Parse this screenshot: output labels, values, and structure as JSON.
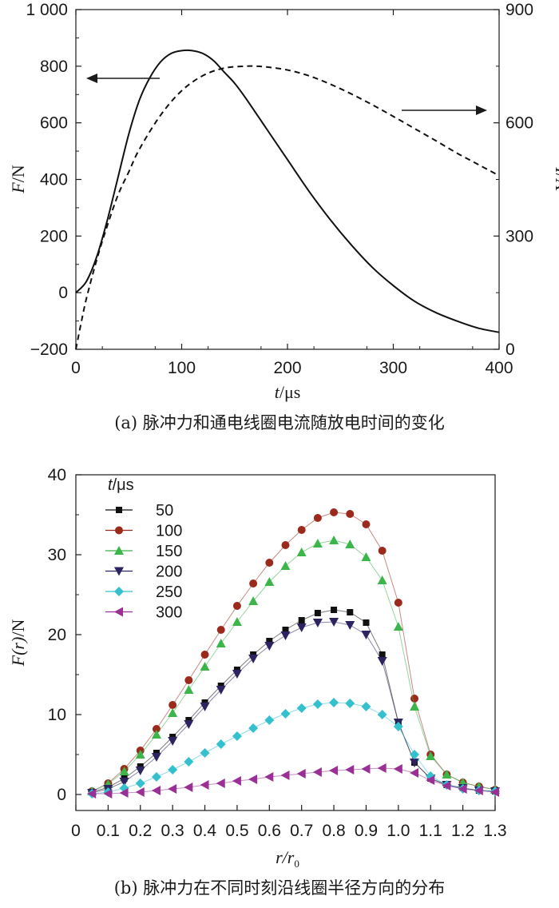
{
  "chart_data": [
    {
      "type": "line",
      "caption": "(a) 脉冲力和通电线圈电流随放电时间的变化",
      "xlabel_var": "t",
      "xlabel_unit": "/μs",
      "ylabel_left_var": "F",
      "ylabel_left_unit": "/N",
      "ylabel_right_var": "I",
      "ylabel_right_unit": "/A",
      "xlim": [
        0,
        400
      ],
      "ylim_left": [
        -200,
        1000
      ],
      "ylim_right": [
        0,
        900
      ],
      "x_ticks": [
        0,
        100,
        200,
        300,
        400
      ],
      "y_left_ticks": [
        -200,
        0,
        200,
        400,
        600,
        800,
        1000
      ],
      "y_left_tick_labels": [
        "−200",
        "0",
        "200",
        "400",
        "600",
        "800",
        "1 000"
      ],
      "y_right_ticks": [
        0,
        300,
        600,
        900
      ],
      "y_right_tick_labels": [
        "0",
        "300",
        "600",
        "900"
      ],
      "series": [
        {
          "name": "F",
          "axis": "left",
          "style": "solid",
          "x": [
            0,
            10,
            20,
            30,
            40,
            50,
            60,
            70,
            80,
            90,
            100,
            110,
            120,
            130,
            140,
            150,
            160,
            180,
            200,
            220,
            240,
            260,
            280,
            300,
            320,
            340,
            360,
            380,
            400
          ],
          "y": [
            0,
            40,
            130,
            260,
            410,
            560,
            680,
            760,
            815,
            845,
            855,
            855,
            845,
            820,
            780,
            740,
            690,
            580,
            470,
            360,
            260,
            170,
            90,
            25,
            -30,
            -70,
            -100,
            -125,
            -140
          ]
        },
        {
          "name": "I",
          "axis": "right",
          "style": "dashed",
          "x": [
            0,
            5,
            10,
            20,
            30,
            40,
            50,
            60,
            80,
            100,
            120,
            140,
            160,
            170,
            180,
            200,
            220,
            240,
            260,
            280,
            300,
            320,
            340,
            360,
            380,
            400
          ],
          "y": [
            0,
            70,
            135,
            240,
            330,
            410,
            470,
            530,
            620,
            685,
            725,
            745,
            750,
            750,
            748,
            740,
            725,
            703,
            677,
            648,
            617,
            585,
            553,
            520,
            490,
            460
          ]
        }
      ],
      "annotations": [
        {
          "type": "arrow",
          "direction": "left",
          "note": "solid curve uses left axis"
        },
        {
          "type": "arrow",
          "direction": "right",
          "note": "dashed curve uses right axis"
        }
      ]
    },
    {
      "type": "line",
      "caption": "(b) 脉冲力在不同时刻沿线圈半径方向的分布",
      "xlabel_var": "r/r",
      "xlabel_sub": "0",
      "ylabel_var": "F(r)",
      "ylabel_unit": "/N",
      "xlim": [
        0,
        1.3
      ],
      "ylim": [
        -2,
        40
      ],
      "x_ticks": [
        0,
        0.1,
        0.2,
        0.3,
        0.4,
        0.5,
        0.6,
        0.7,
        0.8,
        0.9,
        1.0,
        1.1,
        1.2,
        1.3
      ],
      "x_tick_labels": [
        "0",
        "0.1",
        "0.2",
        "0.3",
        "0.4",
        "0.5",
        "0.6",
        "0.7",
        "0.8",
        "0.9",
        "1.0",
        "1.1",
        "1.2",
        "1.3"
      ],
      "y_ticks": [
        0,
        10,
        20,
        30,
        40
      ],
      "legend_title_var": "t",
      "legend_title_unit": "/μs",
      "legend_position": "top-left",
      "x": [
        0.05,
        0.1,
        0.15,
        0.2,
        0.25,
        0.3,
        0.35,
        0.4,
        0.45,
        0.5,
        0.55,
        0.6,
        0.65,
        0.7,
        0.75,
        0.8,
        0.85,
        0.9,
        0.95,
        1.0,
        1.05,
        1.1,
        1.15,
        1.2,
        1.25,
        1.3
      ],
      "series": [
        {
          "name": "50",
          "color": "#111111",
          "marker": "square",
          "values": [
            0.3,
            0.9,
            2.0,
            3.5,
            5.2,
            7.2,
            9.3,
            11.5,
            13.6,
            15.6,
            17.5,
            19.2,
            20.6,
            21.8,
            22.7,
            23.1,
            22.8,
            21.5,
            17.5,
            9.0,
            4.0,
            2.0,
            1.2,
            0.8,
            0.5,
            0.4
          ]
        },
        {
          "name": "100",
          "color": "#9b2a1c",
          "marker": "circle",
          "values": [
            0.4,
            1.4,
            3.2,
            5.5,
            8.2,
            11.2,
            14.3,
            17.5,
            20.6,
            23.6,
            26.4,
            29.0,
            31.2,
            33.1,
            34.6,
            35.3,
            35.1,
            33.8,
            30.5,
            24.0,
            12.0,
            5.0,
            2.5,
            1.5,
            1.0,
            0.6
          ]
        },
        {
          "name": "150",
          "color": "#3cb54a",
          "marker": "triangle-up",
          "values": [
            0.4,
            1.3,
            2.9,
            5.0,
            7.5,
            10.2,
            13.1,
            16.0,
            18.9,
            21.6,
            24.2,
            26.6,
            28.6,
            30.3,
            31.4,
            31.8,
            31.3,
            29.7,
            26.8,
            21.0,
            11.0,
            4.8,
            2.5,
            1.5,
            1.0,
            0.6
          ]
        },
        {
          "name": "200",
          "color": "#2c2460",
          "marker": "triangle-down",
          "values": [
            0.2,
            0.7,
            1.6,
            3.0,
            4.7,
            6.7,
            8.8,
            11.0,
            13.1,
            15.1,
            17.0,
            18.6,
            19.9,
            20.9,
            21.5,
            21.6,
            21.2,
            20.0,
            16.7,
            9.0,
            4.0,
            2.0,
            1.2,
            0.8,
            0.5,
            0.4
          ]
        },
        {
          "name": "250",
          "color": "#35c0ce",
          "marker": "diamond",
          "values": [
            0.1,
            0.3,
            0.8,
            1.4,
            2.2,
            3.1,
            4.1,
            5.2,
            6.3,
            7.3,
            8.3,
            9.3,
            10.1,
            10.8,
            11.3,
            11.5,
            11.4,
            11.0,
            10.0,
            8.5,
            5.0,
            2.3,
            1.2,
            0.7,
            0.5,
            0.4
          ]
        },
        {
          "name": "300",
          "color": "#9a2f96",
          "marker": "triangle-left",
          "values": [
            0.1,
            0.1,
            0.2,
            0.3,
            0.5,
            0.7,
            0.9,
            1.2,
            1.4,
            1.7,
            1.9,
            2.2,
            2.4,
            2.6,
            2.8,
            3.0,
            3.1,
            3.2,
            3.3,
            3.2,
            2.7,
            1.8,
            1.1,
            0.7,
            0.5,
            0.3
          ]
        }
      ]
    }
  ]
}
